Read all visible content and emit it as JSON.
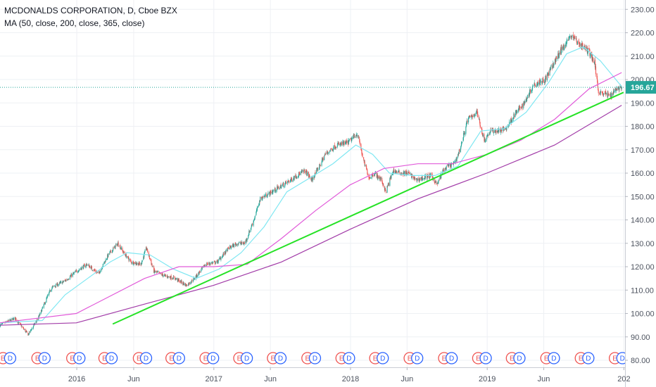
{
  "legend": {
    "symbol_line": "MCDONALDS CORPORATION, D, Cboe BZX",
    "ma_line": "MA (50, close, 200, close, 365, close)"
  },
  "colors": {
    "up": "#26a69a",
    "down": "#ef5350",
    "ma50": "#7fe7f2",
    "ma200": "#e15ad9",
    "ma365": "#a23ca8",
    "trendline": "#26e226",
    "price_line": "#26a69a",
    "earnings": "#ef5350",
    "dividend": "#2962ff"
  },
  "price_tag": "196.67",
  "chart_data": {
    "type": "candlestick",
    "title": "MCDONALDS CORPORATION, D, Cboe BZX",
    "indicator": "MA (50, close, 200, close, 365, close)",
    "ylim": [
      77,
      234
    ],
    "y_ticks": [
      80,
      90,
      100,
      110,
      120,
      130,
      140,
      150,
      160,
      170,
      180,
      190,
      200,
      210,
      220,
      230
    ],
    "y_tick_labels": [
      "80.00",
      "90.00",
      "100.00",
      "110.00",
      "120.00",
      "130.00",
      "140.00",
      "150.00",
      "160.00",
      "170.00",
      "180.00",
      "190.00",
      "200.00",
      "210.00",
      "220.00",
      "230.00"
    ],
    "x_range": [
      "2015-06-10",
      "2020-01-04"
    ],
    "x_ticks": [
      {
        "date": "2016-01-01",
        "label": "2016"
      },
      {
        "date": "2016-06-01",
        "label": "Jun"
      },
      {
        "date": "2017-01-01",
        "label": "2017"
      },
      {
        "date": "2017-06-01",
        "label": "Jun"
      },
      {
        "date": "2018-01-01",
        "label": "2018"
      },
      {
        "date": "2018-06-01",
        "label": "Jun"
      },
      {
        "date": "2019-01-01",
        "label": "2019"
      },
      {
        "date": "2019-06-01",
        "label": "Jun"
      },
      {
        "date": "2020-01-01",
        "label": "202"
      }
    ],
    "last_price": 196.67,
    "close_path": [
      [
        "2015-06-10",
        95
      ],
      [
        "2015-07-20",
        98
      ],
      [
        "2015-08-24",
        91
      ],
      [
        "2015-09-20",
        98
      ],
      [
        "2015-10-25",
        111
      ],
      [
        "2015-12-01",
        114
      ],
      [
        "2015-12-31",
        118
      ],
      [
        "2016-01-28",
        121
      ],
      [
        "2016-02-28",
        117
      ],
      [
        "2016-03-25",
        125
      ],
      [
        "2016-04-20",
        130
      ],
      [
        "2016-05-05",
        126
      ],
      [
        "2016-05-25",
        122
      ],
      [
        "2016-06-20",
        121
      ],
      [
        "2016-07-05",
        128
      ],
      [
        "2016-07-25",
        118
      ],
      [
        "2016-08-25",
        116
      ],
      [
        "2016-09-20",
        115
      ],
      [
        "2016-10-20",
        112
      ],
      [
        "2016-11-10",
        115
      ],
      [
        "2016-12-10",
        121
      ],
      [
        "2017-01-10",
        122
      ],
      [
        "2017-02-10",
        128
      ],
      [
        "2017-03-05",
        130
      ],
      [
        "2017-03-25",
        130
      ],
      [
        "2017-04-20",
        141
      ],
      [
        "2017-05-05",
        149
      ],
      [
        "2017-06-05",
        152
      ],
      [
        "2017-07-05",
        155
      ],
      [
        "2017-07-25",
        157
      ],
      [
        "2017-08-10",
        159
      ],
      [
        "2017-09-01",
        161
      ],
      [
        "2017-09-20",
        157
      ],
      [
        "2017-10-10",
        163
      ],
      [
        "2017-10-25",
        168
      ],
      [
        "2017-11-25",
        172
      ],
      [
        "2017-12-25",
        173
      ],
      [
        "2018-01-20",
        177
      ],
      [
        "2018-02-05",
        165
      ],
      [
        "2018-02-20",
        158
      ],
      [
        "2018-03-05",
        160
      ],
      [
        "2018-03-25",
        157
      ],
      [
        "2018-04-05",
        152
      ],
      [
        "2018-04-25",
        161
      ],
      [
        "2018-05-15",
        160
      ],
      [
        "2018-06-05",
        160
      ],
      [
        "2018-06-25",
        157
      ],
      [
        "2018-07-15",
        158
      ],
      [
        "2018-08-05",
        159
      ],
      [
        "2018-08-20",
        155
      ],
      [
        "2018-09-05",
        161
      ],
      [
        "2018-09-20",
        163
      ],
      [
        "2018-10-05",
        164
      ],
      [
        "2018-10-20",
        170
      ],
      [
        "2018-11-10",
        183
      ],
      [
        "2018-12-05",
        186
      ],
      [
        "2018-12-24",
        174
      ],
      [
        "2019-01-10",
        178
      ],
      [
        "2019-01-30",
        178
      ],
      [
        "2019-02-20",
        179
      ],
      [
        "2019-03-15",
        185
      ],
      [
        "2019-04-10",
        190
      ],
      [
        "2019-05-05",
        198
      ],
      [
        "2019-06-05",
        200
      ],
      [
        "2019-06-25",
        206
      ],
      [
        "2019-07-15",
        212
      ],
      [
        "2019-08-01",
        216
      ],
      [
        "2019-08-15",
        219
      ],
      [
        "2019-08-30",
        216
      ],
      [
        "2019-09-15",
        214
      ],
      [
        "2019-09-30",
        212
      ],
      [
        "2019-10-15",
        207
      ],
      [
        "2019-10-25",
        195
      ],
      [
        "2019-11-10",
        194
      ],
      [
        "2019-11-25",
        193
      ],
      [
        "2019-12-10",
        196
      ],
      [
        "2019-12-26",
        196.67
      ]
    ],
    "moving_averages": [
      {
        "name": "MA 50",
        "color_key": "ma50",
        "path": [
          [
            "2015-06-10",
            96
          ],
          [
            "2015-10-01",
            97
          ],
          [
            "2015-12-01",
            108
          ],
          [
            "2016-01-30",
            115
          ],
          [
            "2016-03-30",
            122
          ],
          [
            "2016-05-15",
            126
          ],
          [
            "2016-07-15",
            125
          ],
          [
            "2016-09-15",
            119
          ],
          [
            "2016-11-15",
            115
          ],
          [
            "2017-01-15",
            119
          ],
          [
            "2017-03-15",
            126
          ],
          [
            "2017-05-15",
            137
          ],
          [
            "2017-07-15",
            152
          ],
          [
            "2017-09-15",
            158
          ],
          [
            "2017-11-15",
            164
          ],
          [
            "2018-01-15",
            172
          ],
          [
            "2018-03-01",
            168
          ],
          [
            "2018-04-15",
            160
          ],
          [
            "2018-06-15",
            159
          ],
          [
            "2018-08-15",
            159
          ],
          [
            "2018-10-15",
            163
          ],
          [
            "2018-12-15",
            178
          ],
          [
            "2019-02-15",
            179
          ],
          [
            "2019-04-15",
            186
          ],
          [
            "2019-06-15",
            199
          ],
          [
            "2019-08-01",
            211
          ],
          [
            "2019-09-15",
            214
          ],
          [
            "2019-10-30",
            208
          ],
          [
            "2019-12-26",
            197
          ]
        ]
      },
      {
        "name": "MA 200",
        "color_key": "ma200",
        "path": [
          [
            "2015-06-10",
            96
          ],
          [
            "2015-12-31",
            100
          ],
          [
            "2016-06-30",
            115
          ],
          [
            "2016-09-30",
            120
          ],
          [
            "2016-12-31",
            120
          ],
          [
            "2017-03-31",
            121
          ],
          [
            "2017-06-30",
            132
          ],
          [
            "2017-09-30",
            144
          ],
          [
            "2017-12-31",
            155
          ],
          [
            "2018-03-31",
            162
          ],
          [
            "2018-06-30",
            164
          ],
          [
            "2018-09-30",
            164
          ],
          [
            "2018-12-31",
            168
          ],
          [
            "2019-03-31",
            174
          ],
          [
            "2019-06-30",
            183
          ],
          [
            "2019-09-30",
            196
          ],
          [
            "2019-12-26",
            203
          ]
        ]
      },
      {
        "name": "MA 365",
        "color_key": "ma365",
        "path": [
          [
            "2015-06-10",
            95
          ],
          [
            "2015-12-31",
            96
          ],
          [
            "2016-06-30",
            104
          ],
          [
            "2016-12-31",
            112
          ],
          [
            "2017-06-30",
            122
          ],
          [
            "2017-12-31",
            136
          ],
          [
            "2018-06-30",
            149
          ],
          [
            "2018-12-31",
            160
          ],
          [
            "2019-06-30",
            172
          ],
          [
            "2019-12-26",
            189
          ]
        ]
      }
    ],
    "trendline": {
      "start": [
        "2016-04-06",
        95.5
      ],
      "end": [
        "2019-12-31",
        194.5
      ]
    },
    "events": [
      {
        "date": "2015-06-18",
        "type": "E"
      },
      {
        "date": "2015-07-07",
        "type": "D"
      },
      {
        "date": "2015-09-18",
        "type": "E"
      },
      {
        "date": "2015-10-07",
        "type": "D"
      },
      {
        "date": "2015-12-20",
        "type": "E"
      },
      {
        "date": "2016-01-08",
        "type": "D"
      },
      {
        "date": "2016-03-15",
        "type": "E"
      },
      {
        "date": "2016-04-03",
        "type": "D"
      },
      {
        "date": "2016-06-15",
        "type": "E"
      },
      {
        "date": "2016-07-04",
        "type": "D"
      },
      {
        "date": "2016-09-10",
        "type": "E"
      },
      {
        "date": "2016-09-30",
        "type": "D"
      },
      {
        "date": "2016-12-10",
        "type": "E"
      },
      {
        "date": "2016-12-30",
        "type": "D"
      },
      {
        "date": "2017-03-10",
        "type": "E"
      },
      {
        "date": "2017-03-30",
        "type": "D"
      },
      {
        "date": "2017-06-08",
        "type": "E"
      },
      {
        "date": "2017-06-28",
        "type": "D"
      },
      {
        "date": "2017-09-08",
        "type": "E"
      },
      {
        "date": "2017-09-28",
        "type": "D"
      },
      {
        "date": "2017-12-08",
        "type": "E"
      },
      {
        "date": "2017-12-28",
        "type": "D"
      },
      {
        "date": "2018-03-08",
        "type": "E"
      },
      {
        "date": "2018-03-28",
        "type": "D"
      },
      {
        "date": "2018-06-08",
        "type": "E"
      },
      {
        "date": "2018-06-28",
        "type": "D"
      },
      {
        "date": "2018-09-08",
        "type": "E"
      },
      {
        "date": "2018-09-28",
        "type": "D"
      },
      {
        "date": "2018-12-08",
        "type": "E"
      },
      {
        "date": "2018-12-28",
        "type": "D"
      },
      {
        "date": "2019-03-08",
        "type": "E"
      },
      {
        "date": "2019-03-28",
        "type": "D"
      },
      {
        "date": "2019-06-08",
        "type": "E"
      },
      {
        "date": "2019-06-28",
        "type": "D"
      },
      {
        "date": "2019-09-08",
        "type": "E"
      },
      {
        "date": "2019-09-28",
        "type": "D"
      },
      {
        "date": "2019-12-08",
        "type": "E"
      },
      {
        "date": "2019-12-28",
        "type": "D"
      }
    ]
  }
}
